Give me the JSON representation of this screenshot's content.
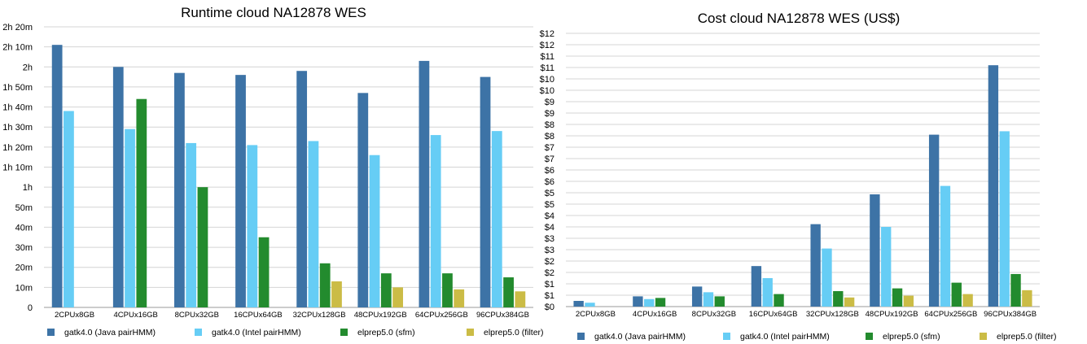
{
  "colors": [
    "#3d73a6",
    "#66cdf5",
    "#238b2e",
    "#cbbc46"
  ],
  "chart_data": [
    {
      "type": "bar",
      "title": "Runtime cloud NA12878 WES",
      "xlabel": "",
      "ylabel": "",
      "unit": "minutes",
      "ylim": [
        0,
        140
      ],
      "yticks": [
        0,
        10,
        20,
        30,
        40,
        50,
        60,
        70,
        80,
        90,
        100,
        110,
        120,
        130,
        140
      ],
      "ytick_labels": [
        "0",
        "10m",
        "20m",
        "30m",
        "40m",
        "50m",
        "1h",
        "1h 10m",
        "1h 20m",
        "1h 30m",
        "1h 40m",
        "1h 50m",
        "2h",
        "2h 10m",
        "2h 20m"
      ],
      "grid": true,
      "legend_position": "bottom",
      "categories": [
        "2CPUx8GB",
        "4CPUx16GB",
        "8CPUx32GB",
        "16CPUx64GB",
        "32CPUx128GB",
        "48CPUx192GB",
        "64CPUx256GB",
        "96CPUx384GB"
      ],
      "series": [
        {
          "name": "gatk4.0 (Java pairHMM)",
          "values": [
            131,
            120,
            117,
            116,
            118,
            107,
            123,
            115
          ]
        },
        {
          "name": "gatk4.0 (Intel pairHMM)",
          "values": [
            98,
            89,
            82,
            81,
            83,
            76,
            86,
            88
          ]
        },
        {
          "name": "elprep5.0 (sfm)",
          "values": [
            null,
            104,
            60,
            35,
            22,
            17,
            17,
            15
          ]
        },
        {
          "name": "elprep5.0 (filter)",
          "values": [
            null,
            null,
            null,
            null,
            13,
            10,
            9,
            8
          ]
        }
      ]
    },
    {
      "type": "bar",
      "title": "Cost cloud NA12878 WES (US$)",
      "xlabel": "",
      "ylabel": "",
      "ylim": [
        0,
        12
      ],
      "yticks": [
        0,
        0.5,
        1,
        1.5,
        2,
        2.5,
        3,
        3.5,
        4,
        4.5,
        5,
        5.5,
        6,
        6.5,
        7,
        7.5,
        8,
        8.5,
        9,
        9.5,
        10,
        10.5,
        11,
        11.5,
        12
      ],
      "ytick_labels": [
        "$0",
        "$1",
        "$1",
        "$2",
        "$2",
        "$3",
        "$3",
        "$4",
        "$4",
        "$5",
        "$5",
        "$6",
        "$6",
        "$7",
        "$7",
        "$8",
        "$8",
        "$9",
        "$9",
        "$10",
        "$10",
        "$11",
        "$11",
        "$12",
        "$12"
      ],
      "grid": true,
      "legend_position": "bottom",
      "categories": [
        "2CPUx8GB",
        "4CPUx16GB",
        "8CPUx32GB",
        "16CPUx64GB",
        "32CPUx128GB",
        "48CPUx192GB",
        "64CPUx256GB",
        "96CPUx384GB"
      ],
      "series": [
        {
          "name": "gatk4.0 (Java pairHMM)",
          "values": [
            0.25,
            0.45,
            0.88,
            1.78,
            3.62,
            4.93,
            7.55,
            10.6
          ]
        },
        {
          "name": "gatk4.0 (Intel pairHMM)",
          "values": [
            0.17,
            0.33,
            0.63,
            1.25,
            2.55,
            3.5,
            5.3,
            7.7
          ]
        },
        {
          "name": "elprep5.0 (sfm)",
          "values": [
            null,
            0.38,
            0.45,
            0.55,
            0.68,
            0.8,
            1.05,
            1.43
          ]
        },
        {
          "name": "elprep5.0 (filter)",
          "values": [
            null,
            null,
            null,
            null,
            0.4,
            0.48,
            0.55,
            0.72
          ]
        }
      ]
    }
  ]
}
